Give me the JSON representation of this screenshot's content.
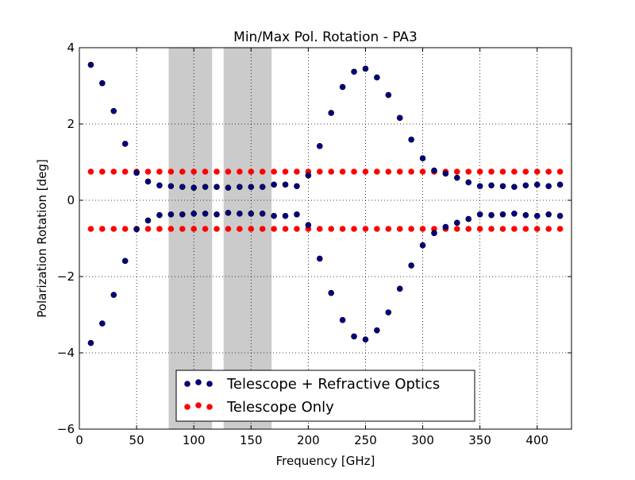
{
  "chart_data": {
    "type": "scatter",
    "title": "Min/Max Pol. Rotation - PA3",
    "xlabel": "Frequency [GHz]",
    "ylabel": "Polarization Rotation [deg]",
    "xlim": [
      0,
      430
    ],
    "ylim": [
      -6,
      4
    ],
    "xticks": [
      0,
      50,
      100,
      150,
      200,
      250,
      300,
      350,
      400
    ],
    "yticks": [
      -6,
      -4,
      -2,
      0,
      2,
      4
    ],
    "xtick_labels": [
      "0",
      "50",
      "100",
      "150",
      "200",
      "250",
      "300",
      "350",
      "400"
    ],
    "ytick_labels": [
      "−6",
      "−4",
      "−2",
      "0",
      "2",
      "4"
    ],
    "grid": true,
    "legend_position": "lower-center",
    "shaded_bands": [
      {
        "x0": 78,
        "x1": 116
      },
      {
        "x0": 126,
        "x1": 168
      }
    ],
    "x": [
      10,
      20,
      30,
      40,
      50,
      60,
      70,
      80,
      90,
      100,
      110,
      120,
      130,
      140,
      150,
      160,
      170,
      180,
      190,
      200,
      210,
      220,
      230,
      240,
      250,
      260,
      270,
      280,
      290,
      300,
      310,
      320,
      330,
      340,
      350,
      360,
      370,
      380,
      390,
      400,
      410,
      420
    ],
    "series": [
      {
        "name": "Telescope + Refractive Optics",
        "color": "#00008b",
        "edge": "#000000",
        "max": [
          3.55,
          3.07,
          2.34,
          1.48,
          0.72,
          0.49,
          0.39,
          0.37,
          0.35,
          0.33,
          0.35,
          0.35,
          0.33,
          0.35,
          0.35,
          0.35,
          0.41,
          0.41,
          0.37,
          0.65,
          1.42,
          2.29,
          2.97,
          3.37,
          3.45,
          3.22,
          2.76,
          2.16,
          1.59,
          1.1,
          0.78,
          0.7,
          0.59,
          0.47,
          0.37,
          0.39,
          0.37,
          0.35,
          0.39,
          0.41,
          0.37,
          0.41
        ],
        "min": [
          -3.74,
          -3.23,
          -2.48,
          -1.59,
          -0.76,
          -0.53,
          -0.39,
          -0.37,
          -0.37,
          -0.35,
          -0.35,
          -0.37,
          -0.33,
          -0.35,
          -0.35,
          -0.35,
          -0.41,
          -0.41,
          -0.37,
          -0.65,
          -1.53,
          -2.43,
          -3.14,
          -3.57,
          -3.65,
          -3.41,
          -2.94,
          -2.32,
          -1.71,
          -1.18,
          -0.86,
          -0.7,
          -0.59,
          -0.49,
          -0.37,
          -0.39,
          -0.37,
          -0.35,
          -0.39,
          -0.41,
          -0.37,
          -0.41
        ]
      },
      {
        "name": "Telescope Only",
        "color": "#ff0000",
        "edge": "#ff0000",
        "x": [
          10,
          20,
          30,
          40,
          50,
          60,
          70,
          80,
          90,
          100,
          110,
          120,
          130,
          140,
          150,
          160,
          170,
          180,
          190,
          200,
          210,
          220,
          230,
          240,
          250,
          260,
          270,
          280,
          290,
          300,
          310,
          320,
          330,
          340,
          350,
          360,
          370,
          380,
          390,
          400,
          410,
          420
        ],
        "max_value": 0.75,
        "min_value": -0.75
      }
    ]
  }
}
